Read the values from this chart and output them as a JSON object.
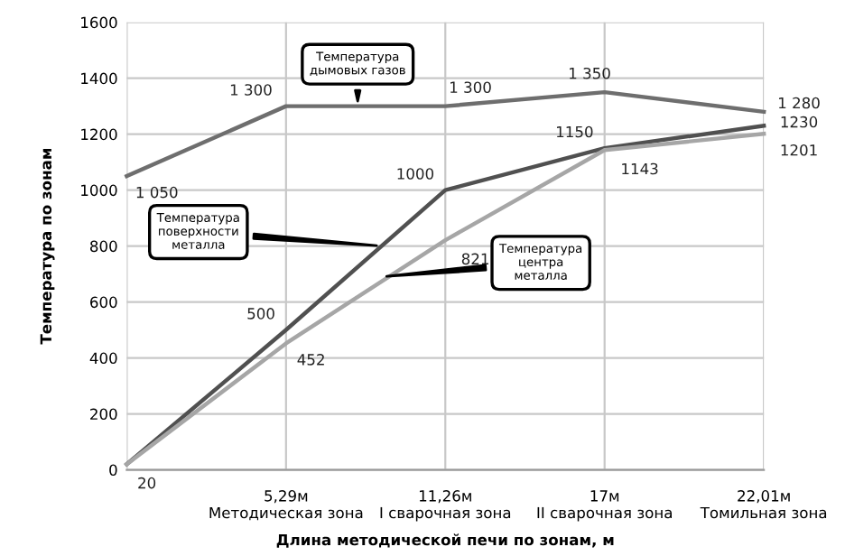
{
  "chart_data": {
    "type": "line",
    "xlabel": "Длина методической печи по зонам, м",
    "ylabel": "Температура по зонам",
    "categories": [
      null,
      "5,29м\nМетодическая зона",
      "11,26м\nI сварочная зона",
      "17м\nII сварочная зона",
      "22,01м\nТомильная зона"
    ],
    "series": [
      {
        "name": "Температура дымовых газов",
        "color": "#6e6e6e",
        "values": [
          1050,
          1300,
          1300,
          1350,
          1280
        ],
        "value_labels": [
          "1 050",
          "1 300",
          "1 300",
          "1 350",
          "1 280"
        ]
      },
      {
        "name": "Температура поверхности металла",
        "color": "#505050",
        "values": [
          20,
          500,
          1000,
          1150,
          1230
        ],
        "value_labels": [
          "20",
          "500",
          "1000",
          "1150",
          "1230"
        ]
      },
      {
        "name": "Температура центра металла",
        "color": "#a6a6a6",
        "values": [
          20,
          452,
          821,
          1143,
          1201
        ],
        "value_labels": [
          null,
          "452",
          "821",
          "1143",
          "1201"
        ]
      }
    ],
    "ylim": [
      0,
      1600
    ],
    "yticks": [
      0,
      200,
      400,
      600,
      800,
      1000,
      1200,
      1400,
      1600
    ],
    "grid": true,
    "legend": false,
    "marker": "none",
    "line_style": "solid"
  }
}
